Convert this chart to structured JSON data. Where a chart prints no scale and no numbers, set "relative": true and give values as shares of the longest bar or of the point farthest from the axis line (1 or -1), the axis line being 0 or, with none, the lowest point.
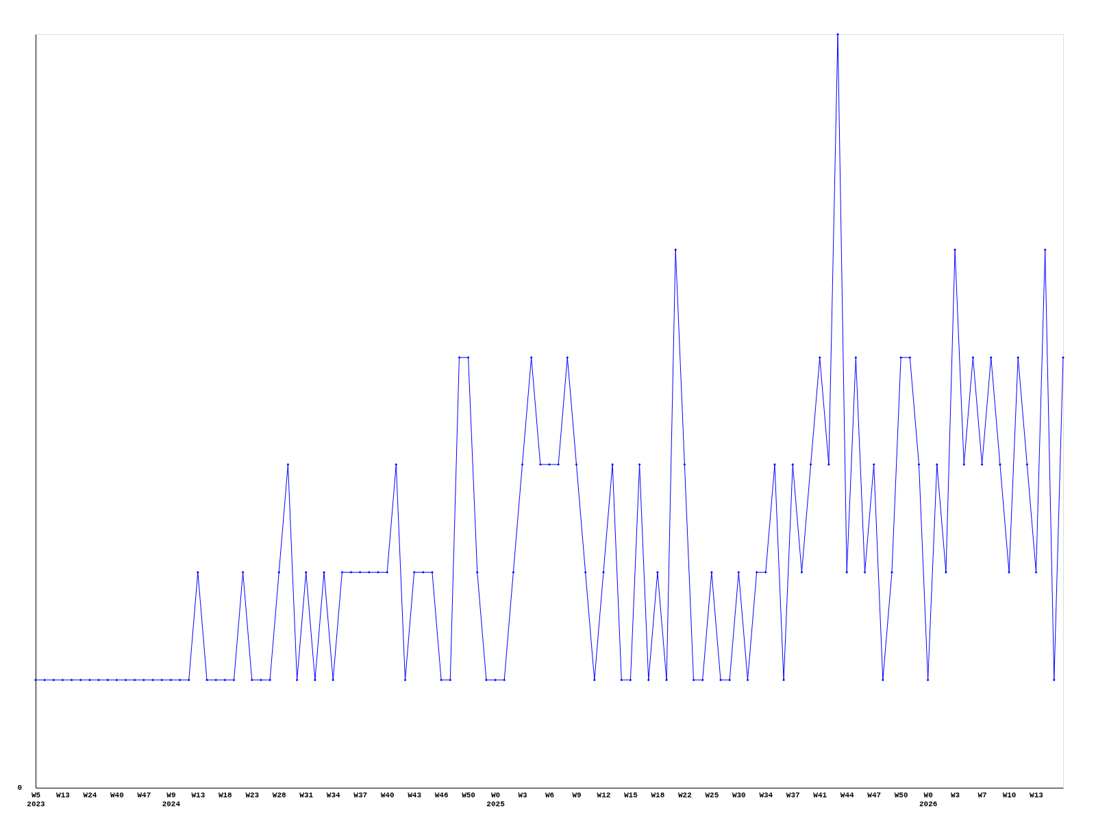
{
  "chart_data": {
    "type": "line",
    "relative": true,
    "marker": "diamond",
    "grid": false,
    "annotations": [
      "0"
    ],
    "categories": [
      "W5\n2023",
      null,
      null,
      "W13",
      null,
      null,
      "W24",
      null,
      null,
      "W40",
      null,
      null,
      "W47",
      null,
      null,
      "W9\n2024",
      null,
      null,
      "W13",
      null,
      null,
      "W18",
      null,
      null,
      "W23",
      null,
      null,
      "W28",
      null,
      null,
      "W31",
      null,
      null,
      "W34",
      null,
      null,
      "W37",
      null,
      null,
      "W40",
      null,
      null,
      "W43",
      null,
      null,
      "W46",
      null,
      null,
      "W50",
      null,
      null,
      "W0\n2025",
      null,
      null,
      "W3",
      null,
      null,
      "W6",
      null,
      null,
      "W9",
      null,
      null,
      "W12",
      null,
      null,
      "W15",
      null,
      null,
      "W18",
      null,
      null,
      "W22",
      null,
      null,
      "W25",
      null,
      null,
      "W30",
      null,
      null,
      "W34",
      null,
      null,
      "W37",
      null,
      null,
      "W41",
      null,
      null,
      "W44",
      null,
      null,
      "W47",
      null,
      null,
      "W50",
      null,
      null,
      "W0\n2026",
      null,
      null,
      "W3",
      null,
      null,
      "W7",
      null,
      null,
      "W10",
      null,
      null,
      "W13",
      null,
      null,
      null
    ],
    "series": [
      {
        "color": "#0000ff",
        "values": [
          0.143,
          0.143,
          0.143,
          0.143,
          0.143,
          0.143,
          0.143,
          0.143,
          0.143,
          0.143,
          0.143,
          0.143,
          0.143,
          0.143,
          0.143,
          0.143,
          0.143,
          0.143,
          0.286,
          0.143,
          0.143,
          0.143,
          0.143,
          0.286,
          0.143,
          0.143,
          0.143,
          0.286,
          0.429,
          0.143,
          0.286,
          0.143,
          0.286,
          0.143,
          0.286,
          0.286,
          0.286,
          0.286,
          0.286,
          0.286,
          0.429,
          0.143,
          0.286,
          0.286,
          0.286,
          0.143,
          0.143,
          0.571,
          0.571,
          0.286,
          0.143,
          0.143,
          0.143,
          0.286,
          0.429,
          0.571,
          0.429,
          0.429,
          0.429,
          0.571,
          0.429,
          0.286,
          0.143,
          0.286,
          0.429,
          0.143,
          0.143,
          0.429,
          0.143,
          0.286,
          0.143,
          0.714,
          0.429,
          0.143,
          0.143,
          0.286,
          0.143,
          0.143,
          0.286,
          0.143,
          0.286,
          0.286,
          0.429,
          0.143,
          0.429,
          0.286,
          0.429,
          0.571,
          0.429,
          1,
          0.286,
          0.571,
          0.286,
          0.429,
          0.143,
          0.286,
          0.571,
          0.571,
          0.429,
          0.143,
          0.429,
          0.286,
          0.714,
          0.429,
          0.571,
          0.429,
          0.571,
          0.429,
          0.286,
          0.571,
          0.429,
          0.286,
          0.714,
          0.143,
          0.571
        ]
      }
    ]
  }
}
